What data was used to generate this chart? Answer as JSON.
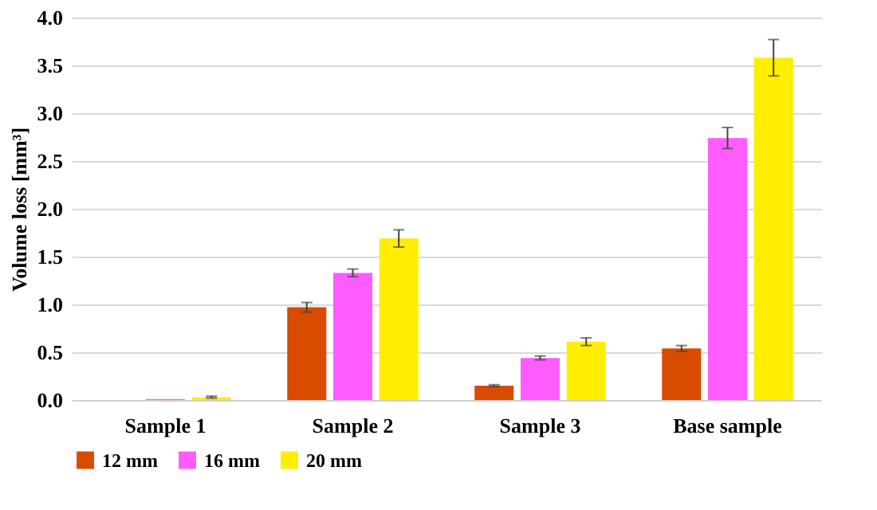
{
  "chart_data": {
    "type": "bar",
    "ylabel": "Volume loss [mm³]",
    "categories": [
      "Sample 1",
      "Sample 2",
      "Sample 3",
      "Base sample"
    ],
    "series": [
      {
        "name": "12 mm",
        "color": "#d84b00",
        "values": [
          null,
          0.97,
          0.15,
          0.54
        ],
        "errors": [
          null,
          0.05,
          0.01,
          0.03
        ]
      },
      {
        "name": "16 mm",
        "color": "#ff5cff",
        "values": [
          0.01,
          1.33,
          0.44,
          2.74
        ],
        "errors": [
          null,
          0.04,
          0.02,
          0.11
        ]
      },
      {
        "name": "20 mm",
        "color": "#ffee00",
        "values": [
          0.03,
          1.69,
          0.61,
          3.58
        ],
        "errors": [
          0.01,
          0.09,
          0.04,
          0.19
        ]
      }
    ],
    "ylim": [
      0,
      4
    ],
    "yticks": [
      {
        "value": 0,
        "label": "0.0"
      },
      {
        "value": 0.5,
        "label": "0.5"
      },
      {
        "value": 1,
        "label": "1.0"
      },
      {
        "value": 1.5,
        "label": "1.5"
      },
      {
        "value": 2,
        "label": "2.0"
      },
      {
        "value": 2.5,
        "label": "2.5"
      },
      {
        "value": 3,
        "label": "3.0"
      },
      {
        "value": 3.5,
        "label": "3.5"
      },
      {
        "value": 4,
        "label": "4.0"
      }
    ],
    "grid": "y",
    "legend": "bottom"
  }
}
